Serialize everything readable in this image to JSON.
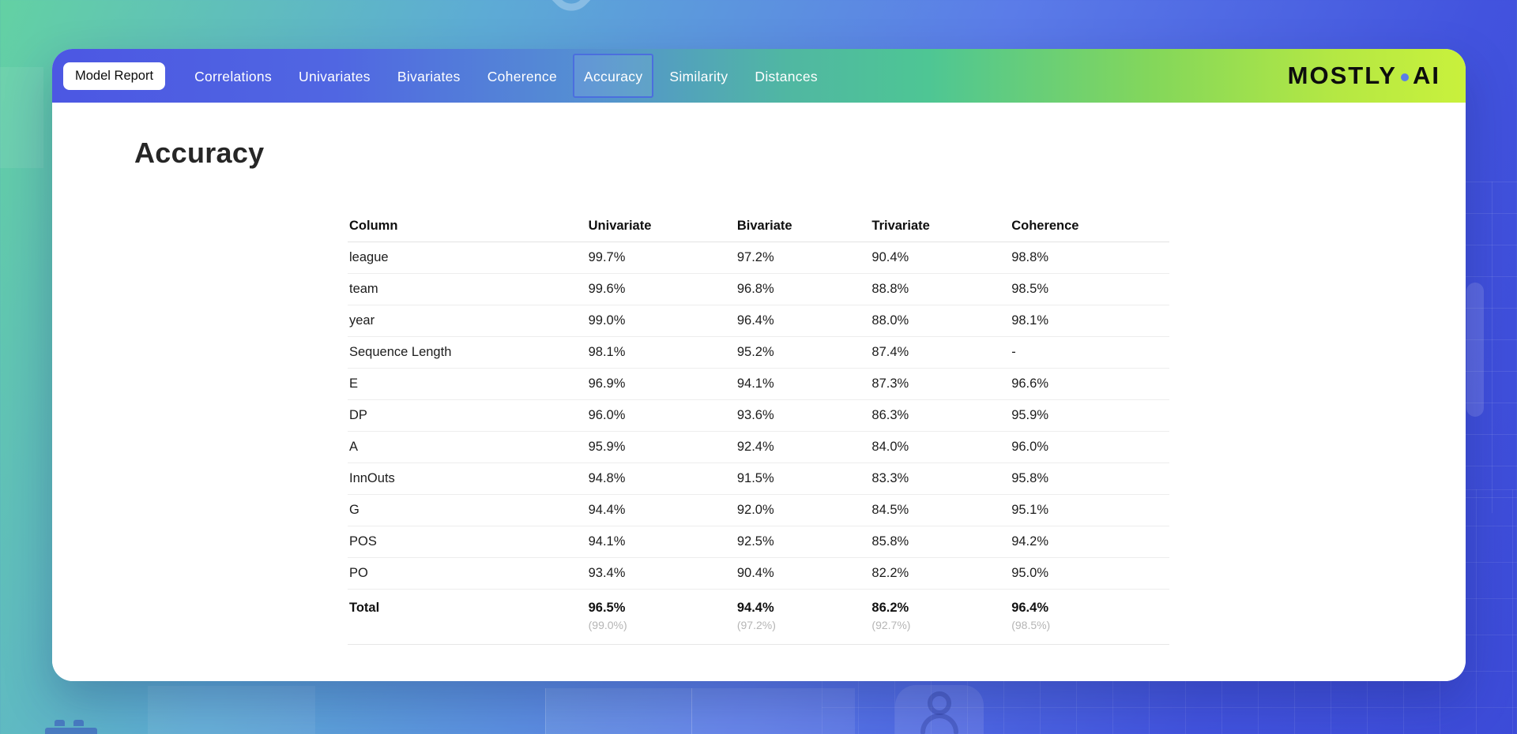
{
  "nav": {
    "badge": "Model Report",
    "items": [
      {
        "label": "Correlations",
        "active": false
      },
      {
        "label": "Univariates",
        "active": false
      },
      {
        "label": "Bivariates",
        "active": false
      },
      {
        "label": "Coherence",
        "active": false
      },
      {
        "label": "Accuracy",
        "active": true
      },
      {
        "label": "Similarity",
        "active": false
      },
      {
        "label": "Distances",
        "active": false
      }
    ],
    "logo": {
      "part1": "MOSTLY",
      "part2": "AI"
    }
  },
  "page": {
    "title": "Accuracy"
  },
  "table": {
    "headers": [
      "Column",
      "Univariate",
      "Bivariate",
      "Trivariate",
      "Coherence"
    ],
    "rows": [
      [
        "league",
        "99.7%",
        "97.2%",
        "90.4%",
        "98.8%"
      ],
      [
        "team",
        "99.6%",
        "96.8%",
        "88.8%",
        "98.5%"
      ],
      [
        "year",
        "99.0%",
        "96.4%",
        "88.0%",
        "98.1%"
      ],
      [
        "Sequence Length",
        "98.1%",
        "95.2%",
        "87.4%",
        "-"
      ],
      [
        "E",
        "96.9%",
        "94.1%",
        "87.3%",
        "96.6%"
      ],
      [
        "DP",
        "96.0%",
        "93.6%",
        "86.3%",
        "95.9%"
      ],
      [
        "A",
        "95.9%",
        "92.4%",
        "84.0%",
        "96.0%"
      ],
      [
        "InnOuts",
        "94.8%",
        "91.5%",
        "83.3%",
        "95.8%"
      ],
      [
        "G",
        "94.4%",
        "92.0%",
        "84.5%",
        "95.1%"
      ],
      [
        "POS",
        "94.1%",
        "92.5%",
        "85.8%",
        "94.2%"
      ],
      [
        "PO",
        "93.4%",
        "90.4%",
        "82.2%",
        "95.0%"
      ]
    ],
    "total": {
      "label": "Total",
      "values": [
        "96.5%",
        "94.4%",
        "86.2%",
        "96.4%"
      ],
      "subvalues": [
        "(99.0%)",
        "(97.2%)",
        "(92.7%)",
        "(98.5%)"
      ]
    }
  },
  "colors": {
    "active_tab_border": "#4b6ede",
    "logo_dot": "#5a7de8",
    "nav_gradient_start": "#4c57e3",
    "nav_gradient_end": "#c9f13c",
    "background_gradient_start": "#63d1a3",
    "background_gradient_end": "#3c4bd8",
    "total_subvalue_gray": "#b5b5b5"
  }
}
